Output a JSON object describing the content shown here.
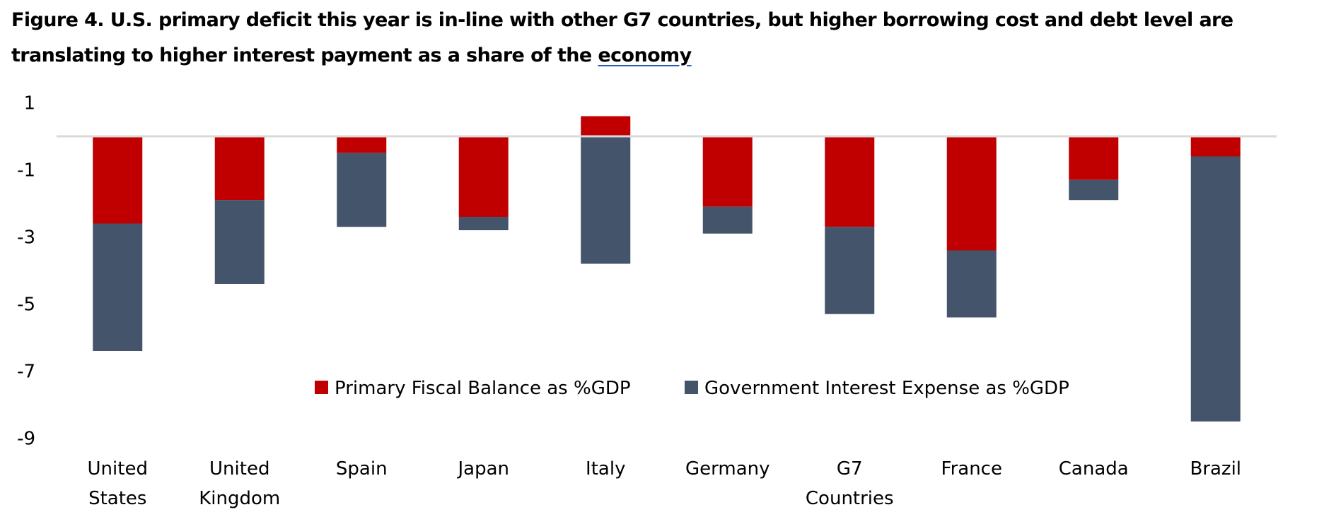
{
  "title_part1": "Figure 4. U.S. primary deficit this year is in-line with other G7 countries, but higher borrowing cost and debt level are translating to higher interest payment as a share of the ",
  "title_part2": "economy",
  "chart_data": {
    "type": "bar",
    "stacked": true,
    "title": "Figure 4. U.S. primary deficit this year is in-line with other G7 countries, but higher borrowing cost and debt level are translating to higher interest payment as a share of the economy",
    "xlabel": "",
    "ylabel": "",
    "categories": [
      [
        "United",
        "States"
      ],
      [
        "United",
        "Kingdom"
      ],
      [
        "Spain"
      ],
      [
        "Japan"
      ],
      [
        "Italy"
      ],
      [
        "Germany"
      ],
      [
        "G7",
        "Countries"
      ],
      [
        "France"
      ],
      [
        "Canada"
      ],
      [
        "Brazil"
      ]
    ],
    "series": [
      {
        "name": "Primary Fiscal Balance as %GDP",
        "color": "#c00000",
        "values": [
          -2.6,
          -1.9,
          -0.5,
          -2.4,
          0.6,
          -2.1,
          -2.7,
          -3.4,
          -1.3,
          -0.6
        ]
      },
      {
        "name": "Government Interest Expense as %GDP",
        "color": "#44546a",
        "values": [
          -3.8,
          -2.5,
          -2.2,
          -0.4,
          -3.8,
          -0.8,
          -2.6,
          -2.0,
          -0.6,
          -7.9
        ]
      }
    ],
    "ylim": [
      -9,
      1
    ],
    "yticks": [
      1,
      -1,
      -3,
      -5,
      -7,
      -9
    ],
    "grid": false,
    "zero_line": true,
    "legend": "inside-bottom-center"
  }
}
